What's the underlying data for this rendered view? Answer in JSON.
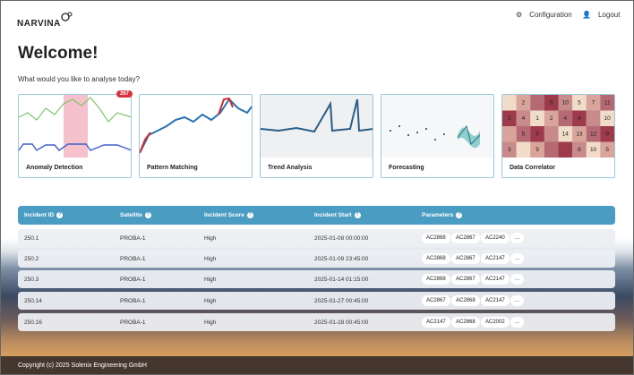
{
  "header": {
    "logo": "NARVINA",
    "nav": [
      "Configuration",
      "Logout"
    ]
  },
  "welcome": {
    "title": "Welcome!",
    "subtitle": "What would you like to analyse today?"
  },
  "cards": [
    {
      "label": "Anomaly Detection",
      "badge": "267"
    },
    {
      "label": "Pattern Matching"
    },
    {
      "label": "Trend Analysis"
    },
    {
      "label": "Forecasting"
    },
    {
      "label": "Data Correlator"
    }
  ],
  "heatmap": [
    [
      null,
      "2",
      null,
      "5",
      "10",
      "5",
      "7",
      "11"
    ],
    [
      "2",
      "4",
      "1",
      "2",
      "4",
      "4",
      null,
      "10"
    ],
    [
      null,
      "5",
      "5",
      null,
      "14",
      "13",
      "12",
      "9"
    ],
    [
      "3",
      null,
      "9",
      null,
      null,
      "8",
      "10",
      "5"
    ]
  ],
  "table": {
    "headers": [
      "Incident ID",
      "Satellite",
      "Incident Score",
      "Incident Start",
      "Parameters"
    ],
    "more_label": "...",
    "rows": [
      [
        "250.1",
        "PROBA-1",
        "High",
        "2025-01-08 00:00:00",
        [
          "AC2868",
          "AC2867",
          "AC2240"
        ]
      ],
      [
        "250.2",
        "PROBA-1",
        "High",
        "2025-01-09 23:45:00",
        [
          "AC2868",
          "AC2867",
          "AC2147"
        ]
      ],
      [
        "250.3",
        "PROBA-1",
        "High",
        "2025-01-14 01:15:00",
        [
          "AC2868",
          "AC2867",
          "AC2147"
        ]
      ],
      [
        "250.14",
        "PROBA-1",
        "High",
        "2025-01-27 00:45:00",
        [
          "AC2867",
          "AC2868",
          "AC2147"
        ]
      ],
      [
        "250.16",
        "PROBA-1",
        "High",
        "2025-01-28 00:45:00",
        [
          "AC2147",
          "AC2868",
          "AC2002"
        ]
      ]
    ]
  },
  "footer": {
    "copyright": "Copyright (c) 2025 Solenix Engineering GmbH"
  }
}
